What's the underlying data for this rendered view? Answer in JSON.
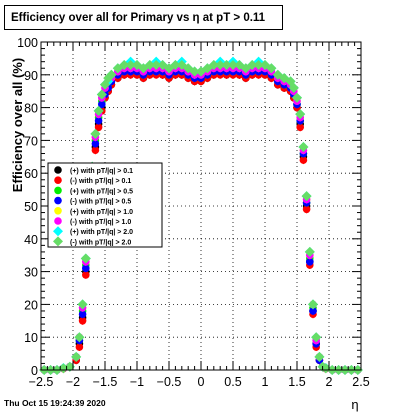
{
  "chart_data": {
    "type": "scatter",
    "title": "Efficiency over all for Primary vs   η at pT > 0.11",
    "xlabel": "η",
    "ylabel": "Efficiency over all (%)",
    "xlim": [
      -2.5,
      2.5
    ],
    "ylim": [
      0,
      100
    ],
    "x_ticks": [
      "−2.5",
      "−2",
      "−1.5",
      "−1",
      "−0.5",
      "0",
      "0.5",
      "1",
      "1.5",
      "2",
      "2.5"
    ],
    "y_ticks": [
      "0",
      "10",
      "20",
      "30",
      "40",
      "50",
      "60",
      "70",
      "80",
      "90",
      "100"
    ],
    "grid": true,
    "legend_position": "left-middle",
    "x": [
      -2.45,
      -2.35,
      -2.25,
      -2.15,
      -2.05,
      -1.95,
      -1.9,
      -1.85,
      -1.8,
      -1.75,
      -1.7,
      -1.65,
      -1.6,
      -1.55,
      -1.5,
      -1.45,
      -1.4,
      -1.3,
      -1.2,
      -1.1,
      -1.0,
      -0.9,
      -0.8,
      -0.7,
      -0.6,
      -0.5,
      -0.4,
      -0.3,
      -0.2,
      -0.1,
      0.0,
      0.1,
      0.2,
      0.3,
      0.4,
      0.5,
      0.6,
      0.7,
      0.8,
      0.9,
      1.0,
      1.1,
      1.2,
      1.3,
      1.4,
      1.45,
      1.5,
      1.55,
      1.6,
      1.65,
      1.7,
      1.75,
      1.8,
      1.85,
      1.9,
      1.95,
      2.05,
      2.15,
      2.25,
      2.35,
      2.45
    ],
    "series": [
      {
        "name": "(+) with pT/|q| > 0.1",
        "color": "#000000",
        "marker": "circle",
        "values": [
          0,
          0,
          0,
          0.5,
          1,
          3,
          8,
          16,
          30,
          45,
          58,
          68,
          75,
          80,
          83,
          85,
          87,
          89,
          90,
          91,
          90,
          89,
          90,
          91,
          90,
          89,
          90,
          90,
          89,
          88,
          88,
          89,
          90,
          91,
          90,
          91,
          90,
          89,
          90,
          91,
          90,
          89,
          87,
          86,
          85,
          83,
          80,
          75,
          65,
          50,
          33,
          18,
          8,
          3,
          1,
          0.5,
          0,
          0,
          0,
          0,
          0
        ]
      },
      {
        "name": "(-) with pT/|q| > 0.1",
        "color": "#ff0000",
        "marker": "circle",
        "values": [
          0,
          0,
          0,
          0.4,
          1,
          3,
          7,
          15,
          29,
          44,
          57,
          67,
          74,
          79,
          83,
          85,
          87,
          89,
          90,
          90,
          90,
          89,
          90,
          90,
          90,
          89,
          90,
          90,
          89,
          88,
          88,
          89,
          90,
          90,
          90,
          90,
          90,
          89,
          90,
          90,
          90,
          89,
          87,
          86,
          85,
          83,
          80,
          74,
          64,
          49,
          32,
          17,
          7,
          3,
          1,
          0.4,
          0,
          0,
          0,
          0,
          0
        ]
      },
      {
        "name": "(+) with pT/|q| > 0.5",
        "color": "#00ee00",
        "marker": "circle",
        "values": [
          0,
          0,
          0,
          0.6,
          1,
          4,
          9,
          18,
          32,
          47,
          60,
          70,
          77,
          82,
          85,
          87,
          89,
          90,
          91,
          91,
          91,
          90,
          91,
          91,
          91,
          90,
          91,
          91,
          90,
          89,
          89,
          90,
          91,
          91,
          91,
          91,
          91,
          90,
          91,
          91,
          91,
          90,
          88,
          87,
          86,
          84,
          81,
          76,
          66,
          51,
          34,
          19,
          9,
          4,
          1,
          0.6,
          0,
          0,
          0,
          0,
          0
        ]
      },
      {
        "name": "(-) with pT/|q| > 0.5",
        "color": "#0000ff",
        "marker": "circle",
        "values": [
          0,
          0,
          0,
          0.5,
          1,
          4,
          9,
          17,
          31,
          46,
          59,
          69,
          76,
          81,
          84,
          86,
          88,
          90,
          91,
          91,
          91,
          90,
          91,
          91,
          91,
          90,
          91,
          91,
          90,
          89,
          89,
          90,
          91,
          91,
          91,
          91,
          91,
          90,
          91,
          91,
          91,
          90,
          88,
          87,
          86,
          84,
          81,
          76,
          66,
          51,
          33,
          18,
          8,
          3,
          1,
          0.5,
          0,
          0,
          0,
          0,
          0
        ]
      },
      {
        "name": "(+) with pT/|q| > 1.0",
        "color": "#ffff00",
        "marker": "circle",
        "values": [
          0,
          0,
          0,
          0.6,
          1,
          4,
          10,
          19,
          33,
          48,
          61,
          71,
          78,
          83,
          86,
          88,
          89,
          91,
          92,
          92,
          92,
          91,
          92,
          92,
          92,
          91,
          92,
          92,
          91,
          90,
          90,
          91,
          92,
          92,
          92,
          92,
          92,
          91,
          92,
          92,
          92,
          91,
          89,
          88,
          87,
          85,
          82,
          77,
          67,
          52,
          35,
          20,
          9,
          4,
          1,
          0.6,
          0,
          0,
          0,
          0,
          0
        ]
      },
      {
        "name": "(-) with pT/|q| > 1.0",
        "color": "#ff00ff",
        "marker": "circle",
        "values": [
          0,
          0,
          0,
          0.5,
          1,
          4,
          10,
          19,
          33,
          48,
          61,
          71,
          78,
          83,
          86,
          88,
          89,
          91,
          92,
          92,
          92,
          91,
          92,
          92,
          92,
          91,
          92,
          92,
          91,
          90,
          90,
          91,
          92,
          92,
          92,
          92,
          92,
          91,
          92,
          92,
          92,
          91,
          89,
          88,
          87,
          85,
          82,
          77,
          67,
          52,
          35,
          20,
          9,
          4,
          1,
          0.5,
          0,
          0,
          0,
          0,
          0
        ]
      },
      {
        "name": "(+) with pT/|q| > 2.0",
        "color": "#00ffff",
        "marker": "diamond",
        "values": [
          0,
          0,
          0,
          0.6,
          1,
          4,
          10,
          20,
          34,
          49,
          62,
          72,
          79,
          84,
          87,
          88,
          90,
          92,
          93,
          94,
          93,
          92,
          93,
          94,
          93,
          92,
          93,
          94,
          92,
          91,
          91,
          92,
          93,
          94,
          93,
          94,
          93,
          92,
          93,
          94,
          93,
          92,
          90,
          89,
          88,
          86,
          83,
          78,
          68,
          53,
          36,
          20,
          10,
          4,
          1,
          0.6,
          0,
          0,
          0,
          0,
          0
        ]
      },
      {
        "name": "(-) with pT/|q| > 2.0",
        "color": "#66dd66",
        "marker": "diamond",
        "values": [
          0,
          0,
          0,
          0.5,
          1,
          4,
          10,
          20,
          34,
          49,
          62,
          72,
          79,
          84,
          87,
          89,
          90,
          92,
          93,
          93,
          93,
          92,
          93,
          93,
          93,
          92,
          93,
          93,
          92,
          91,
          91,
          92,
          93,
          93,
          93,
          93,
          93,
          92,
          93,
          93,
          93,
          92,
          90,
          89,
          88,
          86,
          83,
          78,
          68,
          53,
          36,
          20,
          10,
          4,
          1,
          0.5,
          0,
          0,
          0,
          0,
          0
        ]
      }
    ]
  },
  "footer": {
    "timestamp": "Thu Oct 15 19:24:39 2020"
  }
}
